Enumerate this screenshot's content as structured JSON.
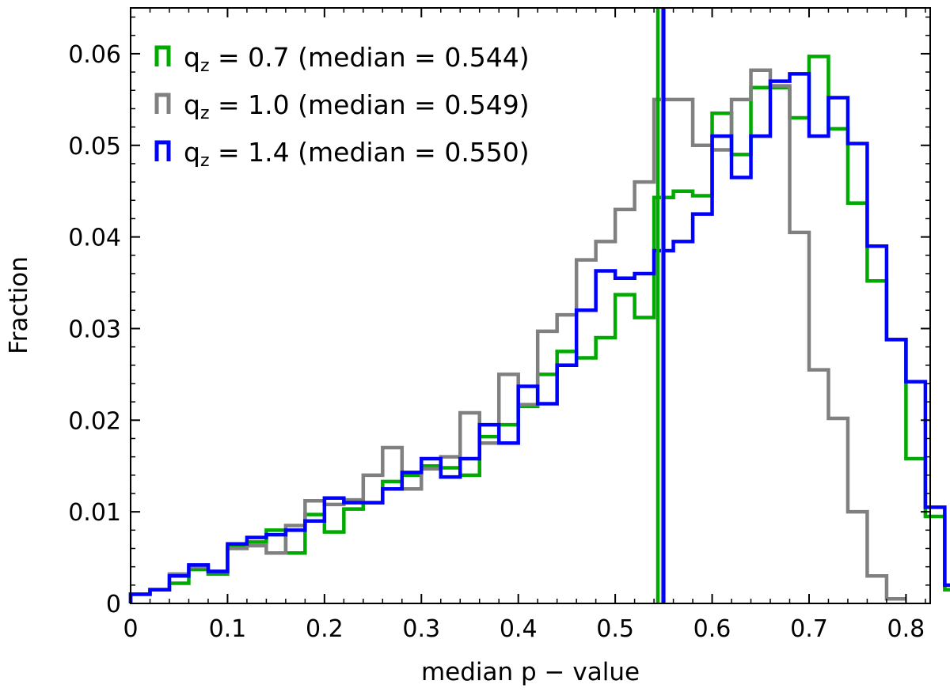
{
  "chart_data": {
    "type": "histogram",
    "title": "",
    "xlabel": "median  p − value",
    "ylabel": "Fraction",
    "xlim": [
      0,
      0.825
    ],
    "ylim": [
      0,
      0.065
    ],
    "bin_width": 0.02,
    "bin_start": 0,
    "xticks": [
      "0",
      "0.1",
      "0.2",
      "0.3",
      "0.4",
      "0.5",
      "0.6",
      "0.7",
      "0.8"
    ],
    "yticks": [
      "0",
      "0.01",
      "0.02",
      "0.03",
      "0.04",
      "0.05",
      "0.06"
    ],
    "legend_position": "top-left",
    "series": [
      {
        "name": "0.7",
        "median_text": "(median = 0.544)",
        "median": 0.544,
        "color": "#00aa00",
        "values": [
          0.001,
          0.0015,
          0.0022,
          0.0037,
          0.0032,
          0.0062,
          0.0067,
          0.008,
          0.0055,
          0.0097,
          0.0078,
          0.0103,
          0.011,
          0.0133,
          0.014,
          0.015,
          0.0148,
          0.014,
          0.0182,
          0.0195,
          0.0215,
          0.025,
          0.0275,
          0.0268,
          0.029,
          0.0337,
          0.0312,
          0.0443,
          0.045,
          0.0445,
          0.0535,
          0.049,
          0.0563,
          0.0563,
          0.053,
          0.0597,
          0.0518,
          0.0437,
          0.0352,
          0.0288,
          0.0158,
          0.0095,
          0.0015,
          0.0
        ]
      },
      {
        "name": "1.0",
        "median_text": "(median = 0.549)",
        "median": 0.549,
        "color": "#808080",
        "values": [
          0.001,
          0.0015,
          0.0032,
          0.004,
          0.0035,
          0.006,
          0.0063,
          0.0055,
          0.0085,
          0.0112,
          0.0108,
          0.0113,
          0.014,
          0.017,
          0.0125,
          0.0147,
          0.016,
          0.0208,
          0.0175,
          0.025,
          0.0217,
          0.0297,
          0.0315,
          0.0375,
          0.0395,
          0.043,
          0.046,
          0.055,
          0.055,
          0.05,
          0.0495,
          0.055,
          0.0582,
          0.0565,
          0.0405,
          0.0255,
          0.0202,
          0.01,
          0.003,
          0.0005
        ]
      },
      {
        "name": "1.4",
        "median_text": "(median = 0.550)",
        "median": 0.55,
        "color": "#0000ff",
        "values": [
          0.001,
          0.0015,
          0.003,
          0.0042,
          0.0035,
          0.0065,
          0.0072,
          0.0075,
          0.008,
          0.009,
          0.0115,
          0.011,
          0.011,
          0.0125,
          0.0143,
          0.0158,
          0.0138,
          0.0158,
          0.0195,
          0.0175,
          0.0237,
          0.0218,
          0.026,
          0.032,
          0.0363,
          0.0355,
          0.036,
          0.0385,
          0.0395,
          0.0425,
          0.051,
          0.0465,
          0.051,
          0.057,
          0.0578,
          0.051,
          0.0552,
          0.0502,
          0.039,
          0.0288,
          0.0242,
          0.0105,
          0.002,
          0.0
        ]
      }
    ]
  }
}
